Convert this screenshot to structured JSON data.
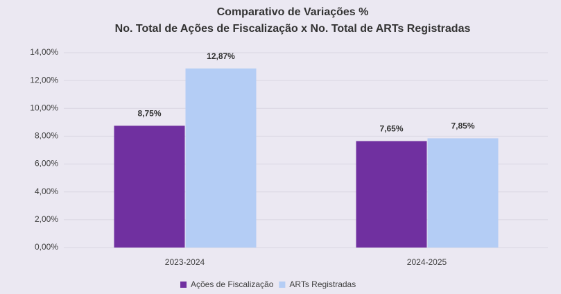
{
  "chart_data": {
    "type": "bar",
    "title": "Comparativo de Variações %",
    "subtitle": "No. Total de Ações de Fiscalização x No. Total de ARTs Registradas",
    "categories": [
      "2023-2024",
      "2024-2025"
    ],
    "series": [
      {
        "name": "Ações de Fiscalização",
        "color": "#7030a0",
        "values": [
          8.75,
          7.65
        ],
        "value_labels": [
          "8,75%",
          "7,65%"
        ]
      },
      {
        "name": "ARTs Registradas",
        "color": "#b4cdf5",
        "values": [
          12.87,
          7.85
        ],
        "value_labels": [
          "12,87%",
          "7,85%"
        ]
      }
    ],
    "ylim": [
      0,
      14
    ],
    "yticks": [
      {
        "value": 0,
        "label": "0,00%"
      },
      {
        "value": 2,
        "label": "2,00%"
      },
      {
        "value": 4,
        "label": "4,00%"
      },
      {
        "value": 6,
        "label": "6,00%"
      },
      {
        "value": 8,
        "label": "8,00%"
      },
      {
        "value": 10,
        "label": "10,00%"
      },
      {
        "value": 12,
        "label": "12,00%"
      },
      {
        "value": 14,
        "label": "14,00%"
      }
    ],
    "grid": true,
    "legend": "bottom"
  }
}
